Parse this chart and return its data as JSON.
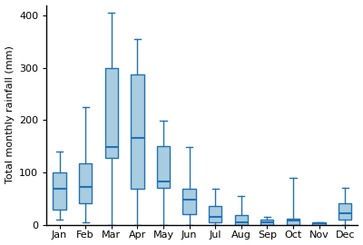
{
  "months": [
    "Jan",
    "Feb",
    "Mar",
    "Apr",
    "May",
    "Jun",
    "Jul",
    "Aug",
    "Sep",
    "Oct",
    "Nov",
    "Dec"
  ],
  "box_stats": {
    "Jan": {
      "whislo": 10,
      "q1": 28,
      "med": 68,
      "q3": 100,
      "whishi": 140
    },
    "Feb": {
      "whislo": 5,
      "q1": 40,
      "med": 72,
      "q3": 118,
      "whishi": 225
    },
    "Mar": {
      "whislo": 0,
      "q1": 128,
      "med": 148,
      "q3": 300,
      "whishi": 405
    },
    "Apr": {
      "whislo": 0,
      "q1": 68,
      "med": 165,
      "q3": 288,
      "whishi": 355
    },
    "May": {
      "whislo": 0,
      "q1": 70,
      "med": 82,
      "q3": 150,
      "whishi": 198
    },
    "Jun": {
      "whislo": 0,
      "q1": 20,
      "med": 48,
      "q3": 68,
      "whishi": 148
    },
    "Jul": {
      "whislo": 0,
      "q1": 5,
      "med": 15,
      "q3": 35,
      "whishi": 68
    },
    "Aug": {
      "whislo": 0,
      "q1": 0,
      "med": 5,
      "q3": 18,
      "whishi": 55
    },
    "Sep": {
      "whislo": 0,
      "q1": 0,
      "med": 5,
      "q3": 10,
      "whishi": 15
    },
    "Oct": {
      "whislo": 0,
      "q1": 0,
      "med": 8,
      "q3": 12,
      "whishi": 90
    },
    "Nov": {
      "whislo": 0,
      "q1": 0,
      "med": 2,
      "q3": 5,
      "whishi": 5
    },
    "Dec": {
      "whislo": 0,
      "q1": 10,
      "med": 22,
      "q3": 40,
      "whishi": 70
    }
  },
  "box_facecolor": "#a8cce0",
  "box_edgecolor": "#2171b5",
  "median_color": "#2171b5",
  "whisker_color": "#2171b5",
  "cap_color": "#2171b5",
  "ylabel": "Total monthly rainfall (mm)",
  "ylim": [
    0,
    420
  ],
  "yticks": [
    0,
    100,
    200,
    300,
    400
  ],
  "figsize": [
    4.0,
    2.7
  ],
  "dpi": 100
}
